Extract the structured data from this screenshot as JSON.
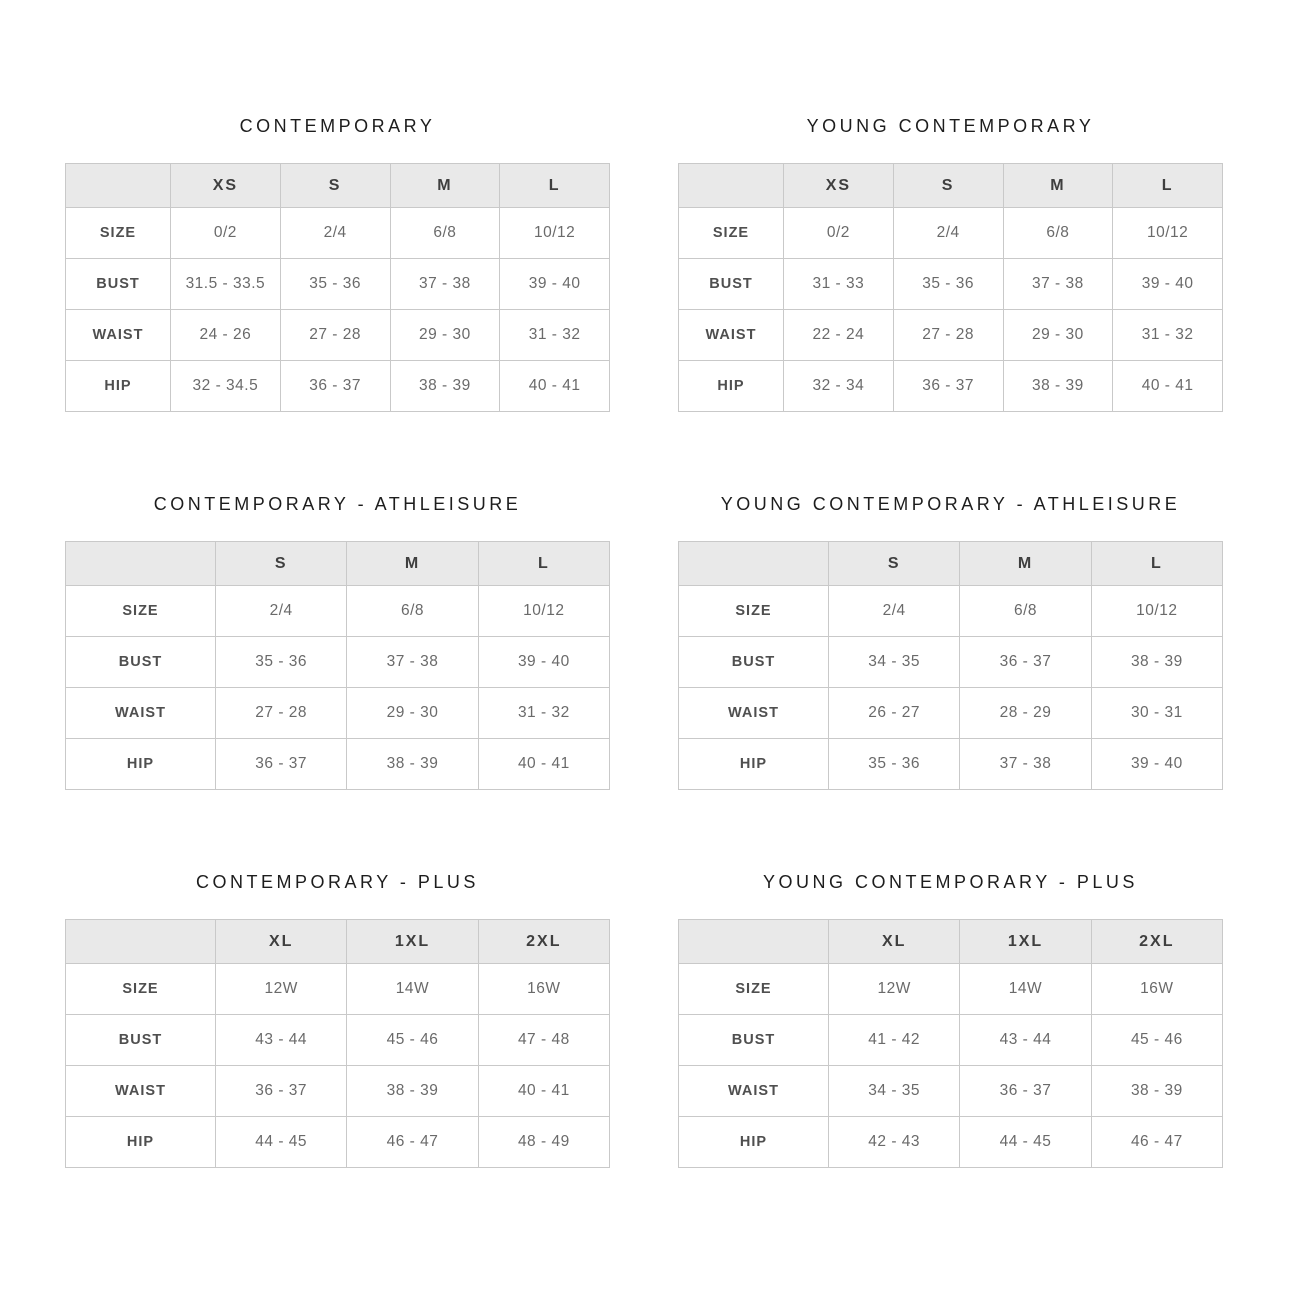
{
  "colors": {
    "header_bg": "#e9e9e9",
    "border": "#c9c9c9",
    "title_text": "#1d1d1d",
    "label_text": "#4f4f4f",
    "value_text": "#6a6a6a",
    "page_bg": "#ffffff"
  },
  "chart_data": [
    {
      "type": "table",
      "title": "CONTEMPORARY",
      "columns": [
        "XS",
        "S",
        "M",
        "L"
      ],
      "rows": [
        {
          "label": "SIZE",
          "values": [
            "0/2",
            "2/4",
            "6/8",
            "10/12"
          ]
        },
        {
          "label": "BUST",
          "values": [
            "31.5 - 33.5",
            "35 - 36",
            "37 - 38",
            "39 - 40"
          ]
        },
        {
          "label": "WAIST",
          "values": [
            "24 - 26",
            "27 - 28",
            "29 - 30",
            "31 - 32"
          ]
        },
        {
          "label": "HIP",
          "values": [
            "32 - 34.5",
            "36 - 37",
            "38 - 39",
            "40 - 41"
          ]
        }
      ]
    },
    {
      "type": "table",
      "title": "YOUNG CONTEMPORARY",
      "columns": [
        "XS",
        "S",
        "M",
        "L"
      ],
      "rows": [
        {
          "label": "SIZE",
          "values": [
            "0/2",
            "2/4",
            "6/8",
            "10/12"
          ]
        },
        {
          "label": "BUST",
          "values": [
            "31 - 33",
            "35 - 36",
            "37 - 38",
            "39 - 40"
          ]
        },
        {
          "label": "WAIST",
          "values": [
            "22 - 24",
            "27 - 28",
            "29 - 30",
            "31 - 32"
          ]
        },
        {
          "label": "HIP",
          "values": [
            "32 - 34",
            "36 - 37",
            "38 - 39",
            "40 - 41"
          ]
        }
      ]
    },
    {
      "type": "table",
      "title": "CONTEMPORARY - ATHLEISURE",
      "columns": [
        "S",
        "M",
        "L"
      ],
      "rows": [
        {
          "label": "SIZE",
          "values": [
            "2/4",
            "6/8",
            "10/12"
          ]
        },
        {
          "label": "BUST",
          "values": [
            "35 - 36",
            "37 - 38",
            "39 - 40"
          ]
        },
        {
          "label": "WAIST",
          "values": [
            "27 - 28",
            "29 - 30",
            "31 - 32"
          ]
        },
        {
          "label": "HIP",
          "values": [
            "36 - 37",
            "38 - 39",
            "40 - 41"
          ]
        }
      ]
    },
    {
      "type": "table",
      "title": "YOUNG CONTEMPORARY - ATHLEISURE",
      "columns": [
        "S",
        "M",
        "L"
      ],
      "rows": [
        {
          "label": "SIZE",
          "values": [
            "2/4",
            "6/8",
            "10/12"
          ]
        },
        {
          "label": "BUST",
          "values": [
            "34 - 35",
            "36 - 37",
            "38 - 39"
          ]
        },
        {
          "label": "WAIST",
          "values": [
            "26 - 27",
            "28 - 29",
            "30 - 31"
          ]
        },
        {
          "label": "HIP",
          "values": [
            "35 - 36",
            "37 - 38",
            "39 - 40"
          ]
        }
      ]
    },
    {
      "type": "table",
      "title": "CONTEMPORARY - PLUS",
      "columns": [
        "XL",
        "1XL",
        "2XL"
      ],
      "rows": [
        {
          "label": "SIZE",
          "values": [
            "12W",
            "14W",
            "16W"
          ]
        },
        {
          "label": "BUST",
          "values": [
            "43 - 44",
            "45 - 46",
            "47 - 48"
          ]
        },
        {
          "label": "WAIST",
          "values": [
            "36 - 37",
            "38 - 39",
            "40 - 41"
          ]
        },
        {
          "label": "HIP",
          "values": [
            "44 - 45",
            "46 - 47",
            "48 - 49"
          ]
        }
      ]
    },
    {
      "type": "table",
      "title": "YOUNG CONTEMPORARY - PLUS",
      "columns": [
        "XL",
        "1XL",
        "2XL"
      ],
      "rows": [
        {
          "label": "SIZE",
          "values": [
            "12W",
            "14W",
            "16W"
          ]
        },
        {
          "label": "BUST",
          "values": [
            "41 - 42",
            "43 - 44",
            "45 - 46"
          ]
        },
        {
          "label": "WAIST",
          "values": [
            "34 - 35",
            "36 - 37",
            "38 - 39"
          ]
        },
        {
          "label": "HIP",
          "values": [
            "42 - 43",
            "44 - 45",
            "46 - 47"
          ]
        }
      ]
    }
  ]
}
